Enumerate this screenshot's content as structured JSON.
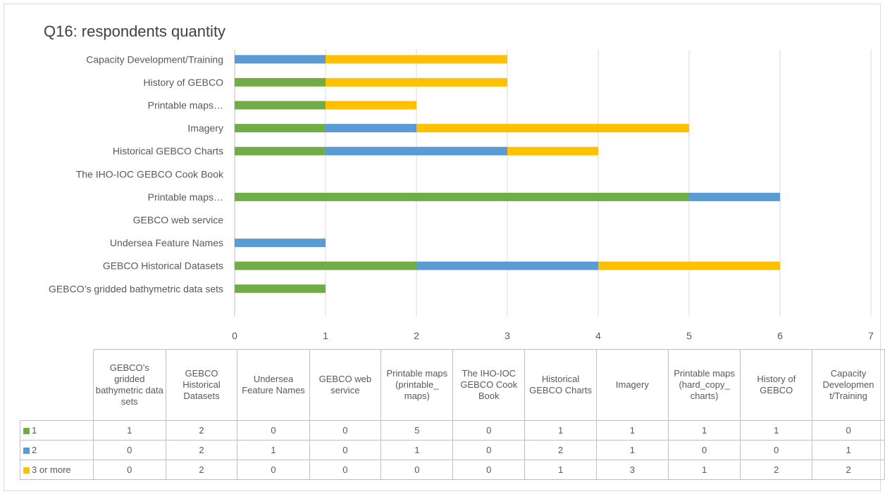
{
  "chart_data": {
    "type": "bar",
    "orientation": "horizontal",
    "stacked": true,
    "title": "Q16: respondents quantity",
    "categories_axis": [
      "GEBCO’s gridded bathymetric data sets",
      "GEBCO Historical Datasets",
      "Undersea Feature Names",
      "GEBCO web service",
      "Printable maps…",
      "The IHO-IOC GEBCO Cook Book",
      "Historical GEBCO Charts",
      "Imagery",
      "Printable maps…",
      "History of GEBCO",
      "Capacity Development/Training"
    ],
    "categories_table": [
      "GEBCO’s gridded bathymetric data sets",
      "GEBCO Historical Datasets",
      "Undersea Feature Names",
      "GEBCO web service",
      "Printable maps (printable_ maps)",
      "The IHO-IOC GEBCO Cook Book",
      "Historical GEBCO Charts",
      "Imagery",
      "Printable maps (hard_copy_ charts)",
      "History of GEBCO",
      "Capacity Developmen t/Training"
    ],
    "series": [
      {
        "name": "1",
        "color": "#70ad47",
        "values": [
          1,
          2,
          0,
          0,
          5,
          0,
          1,
          1,
          1,
          1,
          0
        ]
      },
      {
        "name": "2",
        "color": "#5b9bd5",
        "values": [
          0,
          2,
          1,
          0,
          1,
          0,
          2,
          1,
          0,
          0,
          1
        ]
      },
      {
        "name": "3 or more",
        "color": "#ffc000",
        "values": [
          0,
          2,
          0,
          0,
          0,
          0,
          1,
          3,
          1,
          2,
          2
        ]
      }
    ],
    "xlim": [
      0,
      7
    ],
    "x_ticks": [
      "0",
      "1",
      "2",
      "3",
      "4",
      "5",
      "6",
      "7"
    ],
    "grid": true,
    "legend": "data-table"
  }
}
